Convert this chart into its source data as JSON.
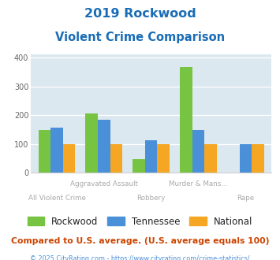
{
  "title_line1": "2019 Rockwood",
  "title_line2": "Violent Crime Comparison",
  "categories": [
    "All Violent Crime",
    "Aggravated Assault",
    "Robbery",
    "Murder & Mans...",
    "Rape"
  ],
  "top_labels": [
    "",
    "Aggravated Assault",
    "",
    "Murder & Mans...",
    ""
  ],
  "bottom_labels": [
    "All Violent Crime",
    "",
    "Robbery",
    "",
    "Rape"
  ],
  "rockwood": [
    150,
    207,
    48,
    367,
    0
  ],
  "tennessee": [
    157,
    185,
    113,
    149,
    100
  ],
  "national": [
    100,
    100,
    100,
    100,
    100
  ],
  "colors": {
    "rockwood": "#76c442",
    "tennessee": "#4a90d9",
    "national": "#f5a623"
  },
  "ylim": [
    0,
    410
  ],
  "yticks": [
    0,
    100,
    200,
    300,
    400
  ],
  "plot_bg": "#dce8ef",
  "title_color": "#1a6db5",
  "label_color": "#aaaaaa",
  "legend_text_color": "#222222",
  "legend_label_rockwood": "Rockwood",
  "legend_label_tennessee": "Tennessee",
  "legend_label_national": "National",
  "footer_text": "Compared to U.S. average. (U.S. average equals 100)",
  "copyright_text": "© 2025 CityRating.com - https://www.cityrating.com/crime-statistics/",
  "footer_color": "#cc4400",
  "copyright_color": "#4a90d9"
}
